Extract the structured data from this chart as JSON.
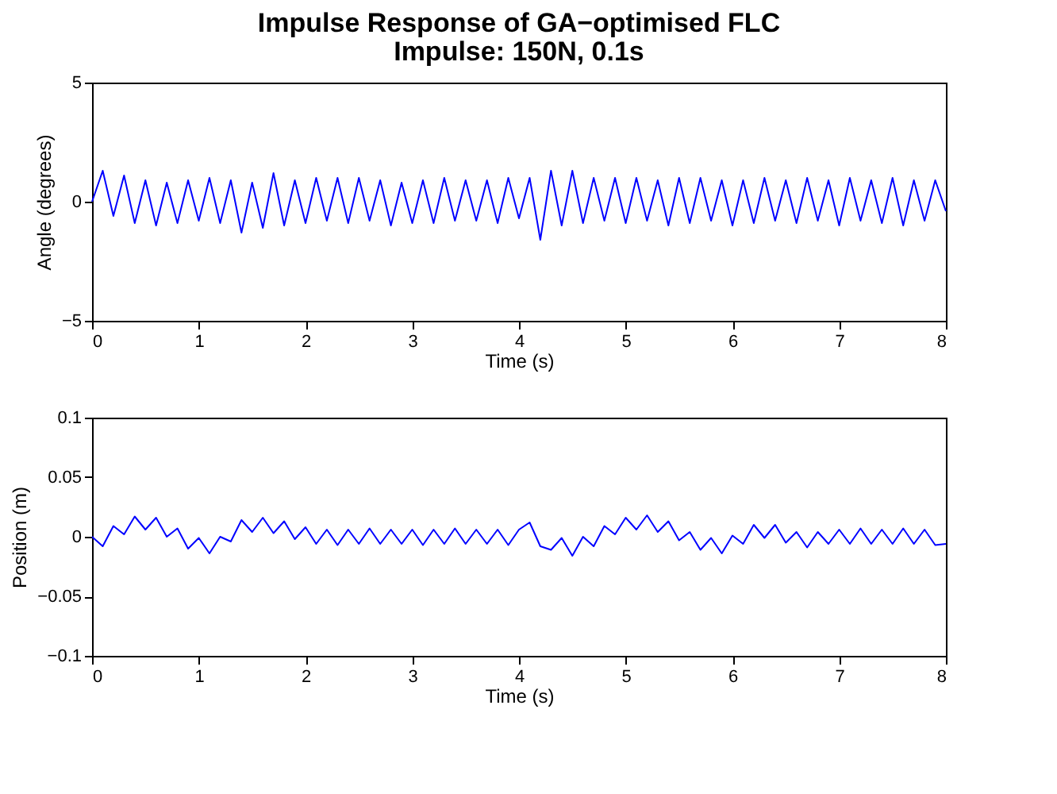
{
  "chart_data": [
    {
      "type": "line",
      "title": "Impulse Response of GA−optimised FLC",
      "subtitle": "Impulse: 150N, 0.1s",
      "xlabel": "Time (s)",
      "ylabel": "Angle (degrees)",
      "x": [
        0,
        0.1,
        0.2,
        0.3,
        0.4,
        0.5,
        0.6,
        0.7,
        0.8,
        0.9,
        1,
        1.1,
        1.2,
        1.3,
        1.4,
        1.5,
        1.6,
        1.7,
        1.8,
        1.9,
        2,
        2.1,
        2.2,
        2.3,
        2.4,
        2.5,
        2.6,
        2.7,
        2.8,
        2.9,
        3,
        3.1,
        3.2,
        3.3,
        3.4,
        3.5,
        3.6,
        3.7,
        3.8,
        3.9,
        4,
        4.1,
        4.2,
        4.3,
        4.4,
        4.5,
        4.6,
        4.7,
        4.8,
        4.9,
        5,
        5.1,
        5.2,
        5.3,
        5.4,
        5.5,
        5.6,
        5.7,
        5.8,
        5.9,
        6,
        6.1,
        6.2,
        6.3,
        6.4,
        6.5,
        6.6,
        6.7,
        6.8,
        6.9,
        7,
        7.1,
        7.2,
        7.3,
        7.4,
        7.5,
        7.6,
        7.7,
        7.8,
        7.9,
        8
      ],
      "series": [
        {
          "color": "#0000ff",
          "values": [
            0,
            1.3,
            -0.6,
            1.1,
            -0.9,
            0.9,
            -1.0,
            0.8,
            -0.9,
            0.9,
            -0.8,
            1.0,
            -0.9,
            0.9,
            -1.3,
            0.8,
            -1.1,
            1.2,
            -1.0,
            0.9,
            -0.9,
            1.0,
            -0.8,
            1.0,
            -0.9,
            1.0,
            -0.8,
            0.9,
            -1.0,
            0.8,
            -0.9,
            0.9,
            -0.9,
            1.0,
            -0.8,
            0.9,
            -0.8,
            0.9,
            -0.9,
            1.0,
            -0.7,
            1.0,
            -1.6,
            1.3,
            -1.0,
            1.3,
            -0.9,
            1.0,
            -0.8,
            1.0,
            -0.9,
            1.0,
            -0.8,
            0.9,
            -1.0,
            1.0,
            -0.9,
            1.0,
            -0.8,
            0.9,
            -1.0,
            0.9,
            -0.9,
            1.0,
            -0.8,
            0.9,
            -0.9,
            1.0,
            -0.8,
            0.9,
            -1.0,
            1.0,
            -0.8,
            0.9,
            -0.9,
            1.0,
            -1.0,
            0.9,
            -0.8,
            0.9,
            -0.4
          ]
        }
      ],
      "xlim": [
        0,
        8
      ],
      "xticks": [
        0,
        1,
        2,
        3,
        4,
        5,
        6,
        7,
        8
      ],
      "ylim": [
        -5,
        5
      ],
      "yticks": [
        {
          "value": -5,
          "label": "−5"
        },
        0,
        5
      ],
      "grid": false
    },
    {
      "type": "line",
      "xlabel": "Time (s)",
      "ylabel": "Position (m)",
      "x": [
        0,
        0.1,
        0.2,
        0.3,
        0.4,
        0.5,
        0.6,
        0.7,
        0.8,
        0.9,
        1,
        1.1,
        1.2,
        1.3,
        1.4,
        1.5,
        1.6,
        1.7,
        1.8,
        1.9,
        2,
        2.1,
        2.2,
        2.3,
        2.4,
        2.5,
        2.6,
        2.7,
        2.8,
        2.9,
        3,
        3.1,
        3.2,
        3.3,
        3.4,
        3.5,
        3.6,
        3.7,
        3.8,
        3.9,
        4,
        4.1,
        4.2,
        4.3,
        4.4,
        4.5,
        4.6,
        4.7,
        4.8,
        4.9,
        5,
        5.1,
        5.2,
        5.3,
        5.4,
        5.5,
        5.6,
        5.7,
        5.8,
        5.9,
        6,
        6.1,
        6.2,
        6.3,
        6.4,
        6.5,
        6.6,
        6.7,
        6.8,
        6.9,
        7,
        7.1,
        7.2,
        7.3,
        7.4,
        7.5,
        7.6,
        7.7,
        7.8,
        7.9,
        8
      ],
      "series": [
        {
          "color": "#0000ff",
          "values": [
            0,
            -0.008,
            0.009,
            0.002,
            0.017,
            0.006,
            0.016,
            0.0,
            0.007,
            -0.01,
            -0.001,
            -0.014,
            0.0,
            -0.004,
            0.014,
            0.004,
            0.016,
            0.003,
            0.013,
            -0.002,
            0.008,
            -0.006,
            0.006,
            -0.007,
            0.006,
            -0.006,
            0.007,
            -0.006,
            0.006,
            -0.006,
            0.006,
            -0.007,
            0.006,
            -0.006,
            0.007,
            -0.006,
            0.006,
            -0.006,
            0.006,
            -0.007,
            0.006,
            0.012,
            -0.008,
            -0.011,
            -0.001,
            -0.016,
            0.0,
            -0.008,
            0.009,
            0.002,
            0.016,
            0.006,
            0.018,
            0.004,
            0.013,
            -0.003,
            0.004,
            -0.011,
            -0.001,
            -0.014,
            0.001,
            -0.006,
            0.01,
            -0.001,
            0.01,
            -0.005,
            0.004,
            -0.009,
            0.004,
            -0.006,
            0.006,
            -0.006,
            0.007,
            -0.006,
            0.006,
            -0.006,
            0.007,
            -0.006,
            0.006,
            -0.007,
            -0.006
          ]
        }
      ],
      "xlim": [
        0,
        8
      ],
      "xticks": [
        0,
        1,
        2,
        3,
        4,
        5,
        6,
        7,
        8
      ],
      "ylim": [
        -0.1,
        0.1
      ],
      "yticks": [
        {
          "value": -0.1,
          "label": "−0.1"
        },
        {
          "value": -0.05,
          "label": "−0.05"
        },
        0,
        0.05,
        0.1
      ],
      "grid": false
    }
  ]
}
